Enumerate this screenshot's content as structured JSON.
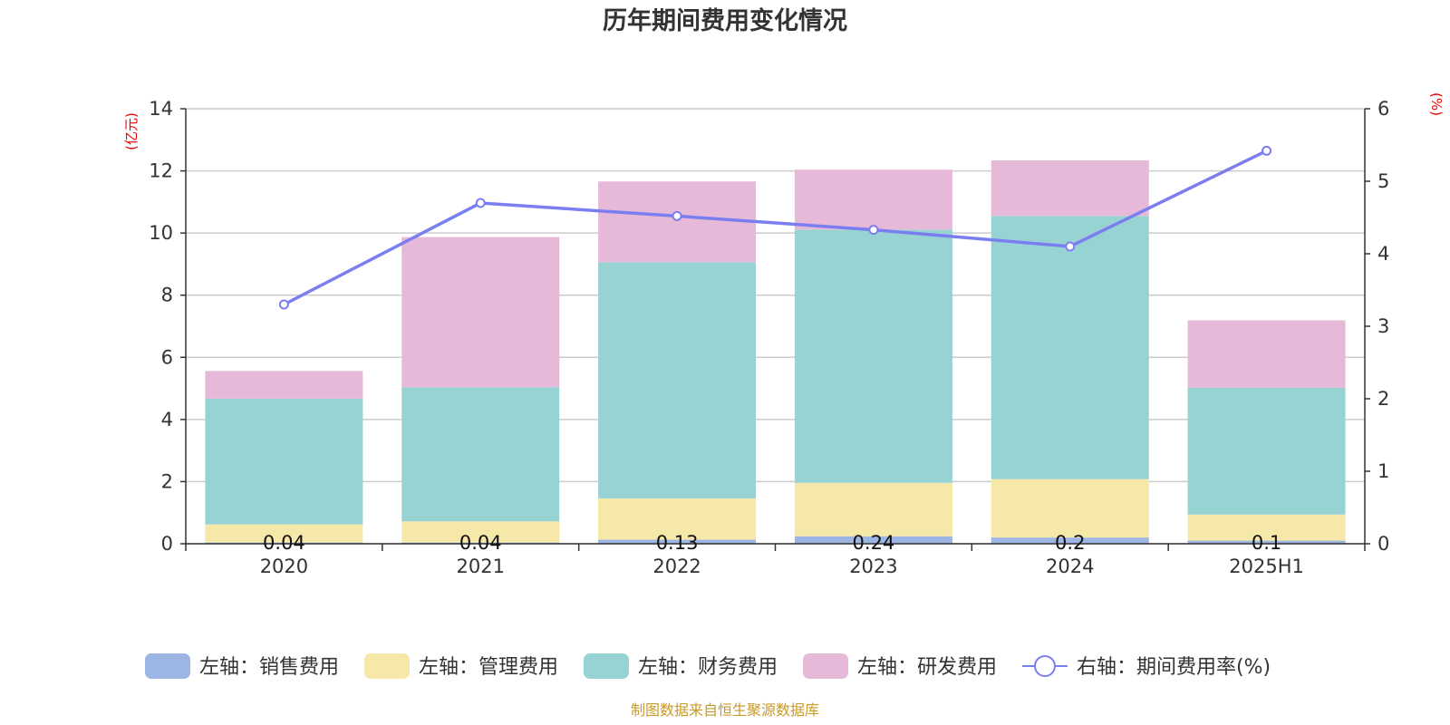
{
  "chart_data": {
    "type": "bar",
    "stacked": true,
    "title": "历年期间费用变化情况",
    "left_axis_unit": "(亿元)",
    "right_axis_unit": "(%)",
    "categories": [
      "2020",
      "2021",
      "2022",
      "2023",
      "2024",
      "2025H1"
    ],
    "y_left": {
      "min": 0,
      "max": 14,
      "ticks": [
        "0",
        "2",
        "4",
        "6",
        "8",
        "10",
        "12",
        "14"
      ]
    },
    "y_right": {
      "min": 0,
      "max": 6,
      "ticks": [
        "0",
        "1",
        "2",
        "3",
        "4",
        "5",
        "6"
      ]
    },
    "series": [
      {
        "name": "左轴：销售费用",
        "axis": "left",
        "kind": "bar",
        "color": "#9db5e2",
        "values": [
          0.04,
          0.04,
          0.13,
          0.24,
          0.2,
          0.1
        ],
        "labels": [
          "0.04",
          "0.04",
          "0.13",
          "0.24",
          "0.2",
          "0.1"
        ]
      },
      {
        "name": "左轴：管理费用",
        "axis": "left",
        "kind": "bar",
        "color": "#f6e8a8",
        "values": [
          0.58,
          0.68,
          1.33,
          1.72,
          1.88,
          0.84
        ]
      },
      {
        "name": "左轴：财务费用",
        "axis": "left",
        "kind": "bar",
        "color": "#98d3d4",
        "values": [
          4.05,
          4.32,
          7.6,
          8.15,
          8.47,
          4.08
        ]
      },
      {
        "name": "左轴：研发费用",
        "axis": "left",
        "kind": "bar",
        "color": "#e7b9d8",
        "values": [
          0.89,
          4.83,
          2.6,
          1.93,
          1.79,
          2.17
        ]
      },
      {
        "name": "右轴：期间费用率(%)",
        "axis": "right",
        "kind": "line",
        "color": "#7b7ef0",
        "values": [
          3.3,
          4.7,
          4.52,
          4.33,
          4.1,
          5.42
        ]
      }
    ],
    "grid": true,
    "legend_position": "bottom"
  },
  "footer": {
    "source": "制图数据来自恒生聚源数据库"
  }
}
